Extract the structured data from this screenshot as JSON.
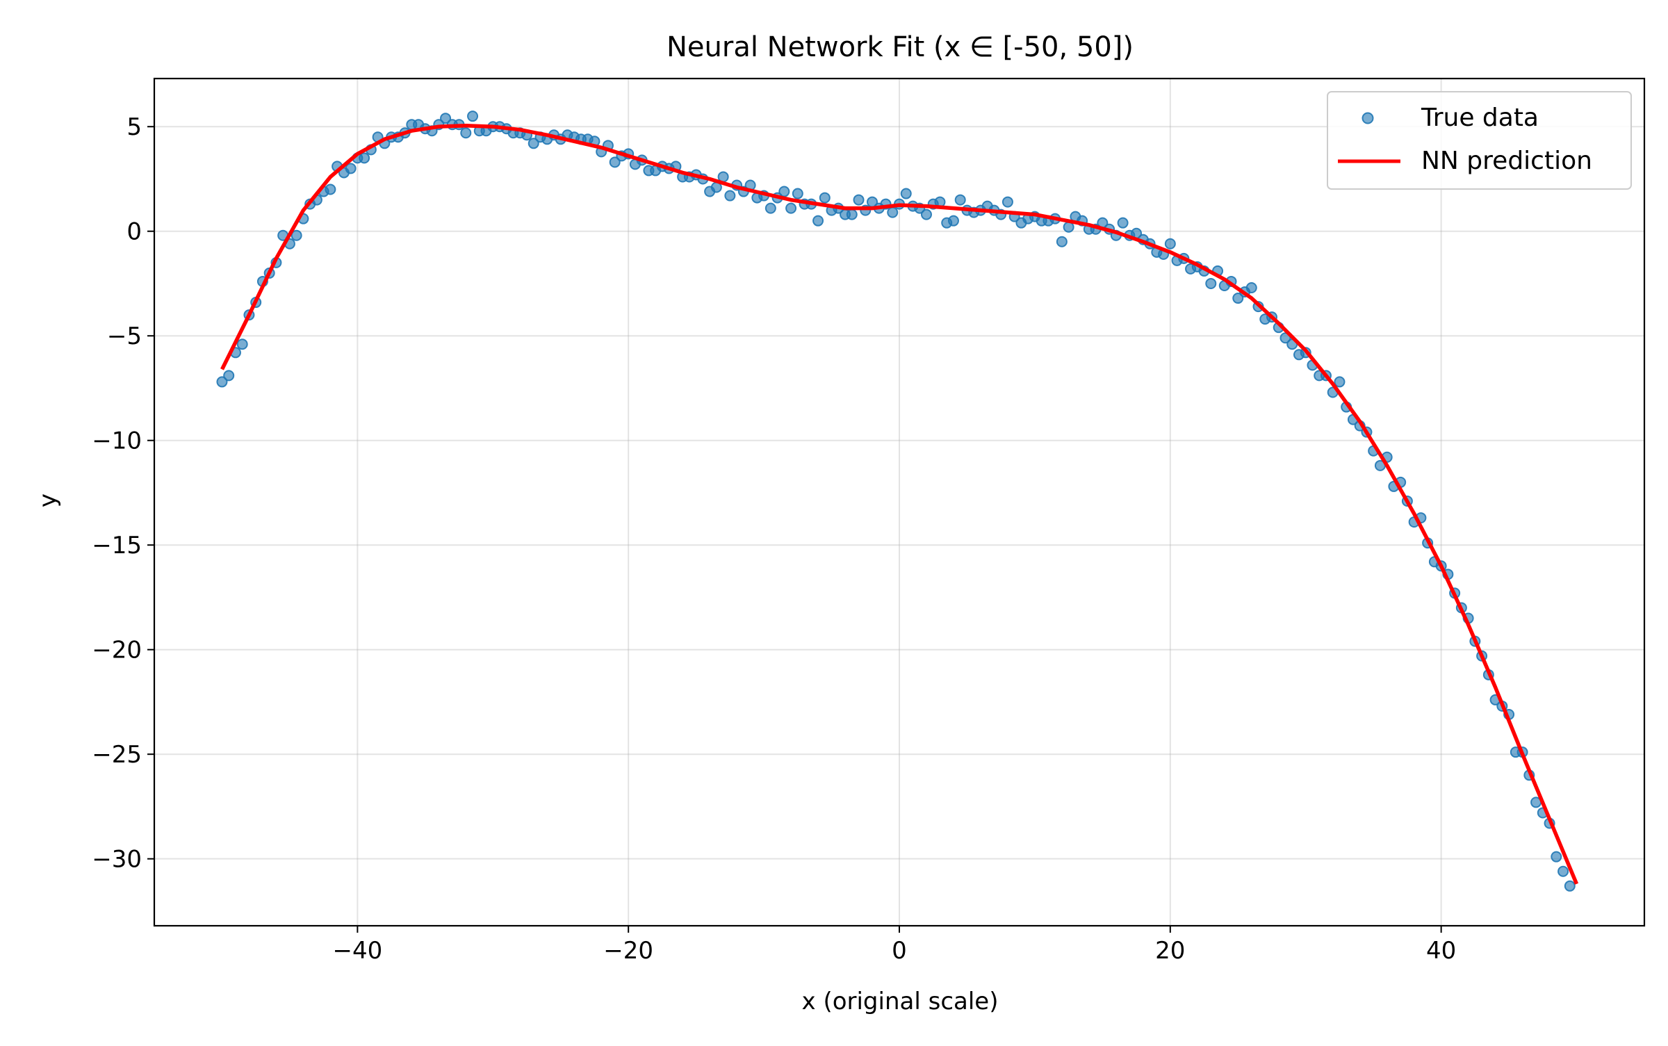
{
  "chart_data": {
    "type": "scatter",
    "title": "Neural Network Fit (x ∈ [-50, 50])",
    "xlabel": "x (original scale)",
    "ylabel": "y",
    "xlim": [
      -55,
      55
    ],
    "ylim": [
      -33.2,
      7.3
    ],
    "xticks": [
      -40,
      -20,
      0,
      20,
      40
    ],
    "xtick_labels": [
      "−40",
      "−20",
      "0",
      "20",
      "40"
    ],
    "yticks": [
      5,
      0,
      -5,
      -10,
      -15,
      -20,
      -25,
      -30
    ],
    "ytick_labels": [
      "5",
      "0",
      "−5",
      "−10",
      "−15",
      "−20",
      "−25",
      "−30"
    ],
    "grid": true,
    "legend": {
      "position": "top-right",
      "entries": [
        "True data",
        "NN prediction"
      ]
    },
    "series": [
      {
        "name": "True data",
        "kind": "scatter",
        "color": "#1f77b4",
        "points": [
          [
            -50.0,
            -7.2
          ],
          [
            -49.5,
            -6.9
          ],
          [
            -49.0,
            -5.8
          ],
          [
            -48.5,
            -5.4
          ],
          [
            -48.0,
            -4.0
          ],
          [
            -47.5,
            -3.4
          ],
          [
            -47.0,
            -2.4
          ],
          [
            -46.5,
            -2.0
          ],
          [
            -46.0,
            -1.5
          ],
          [
            -45.5,
            -0.2
          ],
          [
            -45.0,
            -0.6
          ],
          [
            -44.5,
            -0.2
          ],
          [
            -44.0,
            0.6
          ],
          [
            -43.5,
            1.3
          ],
          [
            -43.0,
            1.5
          ],
          [
            -42.5,
            1.9
          ],
          [
            -42.0,
            2.0
          ],
          [
            -41.5,
            3.1
          ],
          [
            -41.0,
            2.8
          ],
          [
            -40.5,
            3.0
          ],
          [
            -40.0,
            3.5
          ],
          [
            -39.5,
            3.5
          ],
          [
            -39.0,
            3.9
          ],
          [
            -38.5,
            4.5
          ],
          [
            -38.0,
            4.2
          ],
          [
            -37.5,
            4.5
          ],
          [
            -37.0,
            4.5
          ],
          [
            -36.5,
            4.7
          ],
          [
            -36.0,
            5.1
          ],
          [
            -35.5,
            5.1
          ],
          [
            -35.0,
            4.9
          ],
          [
            -34.5,
            4.8
          ],
          [
            -34.0,
            5.1
          ],
          [
            -33.5,
            5.4
          ],
          [
            -33.0,
            5.1
          ],
          [
            -32.5,
            5.1
          ],
          [
            -32.0,
            4.7
          ],
          [
            -31.5,
            5.5
          ],
          [
            -31.0,
            4.8
          ],
          [
            -30.5,
            4.8
          ],
          [
            -30.0,
            5.0
          ],
          [
            -29.5,
            5.0
          ],
          [
            -29.0,
            4.9
          ],
          [
            -28.5,
            4.7
          ],
          [
            -28.0,
            4.7
          ],
          [
            -27.5,
            4.6
          ],
          [
            -27.0,
            4.2
          ],
          [
            -26.5,
            4.5
          ],
          [
            -26.0,
            4.4
          ],
          [
            -25.5,
            4.6
          ],
          [
            -25.0,
            4.4
          ],
          [
            -24.5,
            4.6
          ],
          [
            -24.0,
            4.5
          ],
          [
            -23.5,
            4.4
          ],
          [
            -23.0,
            4.4
          ],
          [
            -22.5,
            4.3
          ],
          [
            -22.0,
            3.8
          ],
          [
            -21.5,
            4.1
          ],
          [
            -21.0,
            3.3
          ],
          [
            -20.5,
            3.6
          ],
          [
            -20.0,
            3.7
          ],
          [
            -19.5,
            3.2
          ],
          [
            -19.0,
            3.4
          ],
          [
            -18.5,
            2.9
          ],
          [
            -18.0,
            2.9
          ],
          [
            -17.5,
            3.1
          ],
          [
            -17.0,
            3.0
          ],
          [
            -16.5,
            3.1
          ],
          [
            -16.0,
            2.6
          ],
          [
            -15.5,
            2.6
          ],
          [
            -15.0,
            2.7
          ],
          [
            -14.5,
            2.5
          ],
          [
            -14.0,
            1.9
          ],
          [
            -13.5,
            2.1
          ],
          [
            -13.0,
            2.6
          ],
          [
            -12.5,
            1.7
          ],
          [
            -12.0,
            2.2
          ],
          [
            -11.5,
            1.9
          ],
          [
            -11.0,
            2.2
          ],
          [
            -10.5,
            1.6
          ],
          [
            -10.0,
            1.7
          ],
          [
            -9.5,
            1.1
          ],
          [
            -9.0,
            1.6
          ],
          [
            -8.5,
            1.9
          ],
          [
            -8.0,
            1.1
          ],
          [
            -7.5,
            1.8
          ],
          [
            -7.0,
            1.3
          ],
          [
            -6.5,
            1.3
          ],
          [
            -6.0,
            0.5
          ],
          [
            -5.5,
            1.6
          ],
          [
            -5.0,
            1.0
          ],
          [
            -4.5,
            1.1
          ],
          [
            -4.0,
            0.8
          ],
          [
            -3.5,
            0.8
          ],
          [
            -3.0,
            1.5
          ],
          [
            -2.5,
            1.0
          ],
          [
            -2.0,
            1.4
          ],
          [
            -1.5,
            1.1
          ],
          [
            -1.0,
            1.3
          ],
          [
            -0.5,
            0.9
          ],
          [
            0.0,
            1.3
          ],
          [
            0.5,
            1.8
          ],
          [
            1.0,
            1.2
          ],
          [
            1.5,
            1.1
          ],
          [
            2.0,
            0.8
          ],
          [
            2.5,
            1.3
          ],
          [
            3.0,
            1.4
          ],
          [
            3.5,
            0.4
          ],
          [
            4.0,
            0.5
          ],
          [
            4.5,
            1.5
          ],
          [
            5.0,
            1.0
          ],
          [
            5.5,
            0.9
          ],
          [
            6.0,
            1.0
          ],
          [
            6.5,
            1.2
          ],
          [
            7.0,
            1.0
          ],
          [
            7.5,
            0.8
          ],
          [
            8.0,
            1.4
          ],
          [
            8.5,
            0.7
          ],
          [
            9.0,
            0.4
          ],
          [
            9.5,
            0.6
          ],
          [
            10.0,
            0.7
          ],
          [
            10.5,
            0.5
          ],
          [
            11.0,
            0.5
          ],
          [
            11.5,
            0.6
          ],
          [
            12.0,
            -0.5
          ],
          [
            12.5,
            0.2
          ],
          [
            13.0,
            0.7
          ],
          [
            13.5,
            0.5
          ],
          [
            14.0,
            0.1
          ],
          [
            14.5,
            0.1
          ],
          [
            15.0,
            0.4
          ],
          [
            15.5,
            0.1
          ],
          [
            16.0,
            -0.2
          ],
          [
            16.5,
            0.4
          ],
          [
            17.0,
            -0.2
          ],
          [
            17.5,
            -0.1
          ],
          [
            18.0,
            -0.4
          ],
          [
            18.5,
            -0.6
          ],
          [
            19.0,
            -1.0
          ],
          [
            19.5,
            -1.1
          ],
          [
            20.0,
            -0.6
          ],
          [
            20.5,
            -1.4
          ],
          [
            21.0,
            -1.3
          ],
          [
            21.5,
            -1.8
          ],
          [
            22.0,
            -1.7
          ],
          [
            22.5,
            -1.9
          ],
          [
            23.0,
            -2.5
          ],
          [
            23.5,
            -1.9
          ],
          [
            24.0,
            -2.6
          ],
          [
            24.5,
            -2.4
          ],
          [
            25.0,
            -3.2
          ],
          [
            25.5,
            -2.9
          ],
          [
            26.0,
            -2.7
          ],
          [
            26.5,
            -3.6
          ],
          [
            27.0,
            -4.2
          ],
          [
            27.5,
            -4.1
          ],
          [
            28.0,
            -4.6
          ],
          [
            28.5,
            -5.1
          ],
          [
            29.0,
            -5.4
          ],
          [
            29.5,
            -5.9
          ],
          [
            30.0,
            -5.8
          ],
          [
            30.5,
            -6.4
          ],
          [
            31.0,
            -6.9
          ],
          [
            31.5,
            -6.9
          ],
          [
            32.0,
            -7.7
          ],
          [
            32.5,
            -7.2
          ],
          [
            33.0,
            -8.4
          ],
          [
            33.5,
            -9.0
          ],
          [
            34.0,
            -9.3
          ],
          [
            34.5,
            -9.6
          ],
          [
            35.0,
            -10.5
          ],
          [
            35.5,
            -11.2
          ],
          [
            36.0,
            -10.8
          ],
          [
            36.5,
            -12.2
          ],
          [
            37.0,
            -12.0
          ],
          [
            37.5,
            -12.9
          ],
          [
            38.0,
            -13.9
          ],
          [
            38.5,
            -13.7
          ],
          [
            39.0,
            -14.9
          ],
          [
            39.5,
            -15.8
          ],
          [
            40.0,
            -16.0
          ],
          [
            40.5,
            -16.4
          ],
          [
            41.0,
            -17.3
          ],
          [
            41.5,
            -18.0
          ],
          [
            42.0,
            -18.5
          ],
          [
            42.5,
            -19.6
          ],
          [
            43.0,
            -20.3
          ],
          [
            43.5,
            -21.2
          ],
          [
            44.0,
            -22.4
          ],
          [
            44.5,
            -22.7
          ],
          [
            45.0,
            -23.1
          ],
          [
            45.5,
            -24.9
          ],
          [
            46.0,
            -24.9
          ],
          [
            46.5,
            -26.0
          ],
          [
            47.0,
            -27.3
          ],
          [
            47.5,
            -27.8
          ],
          [
            48.0,
            -28.3
          ],
          [
            48.5,
            -29.9
          ],
          [
            49.0,
            -30.6
          ],
          [
            49.5,
            -31.3
          ]
        ]
      },
      {
        "name": "NN prediction",
        "kind": "line",
        "color": "#ff0000",
        "points": [
          [
            -50,
            -6.6
          ],
          [
            -48,
            -4.0
          ],
          [
            -46,
            -1.3
          ],
          [
            -44,
            1.0
          ],
          [
            -42,
            2.6
          ],
          [
            -40,
            3.7
          ],
          [
            -38,
            4.4
          ],
          [
            -36,
            4.8
          ],
          [
            -34,
            5.0
          ],
          [
            -32,
            5.05
          ],
          [
            -30,
            5.0
          ],
          [
            -28,
            4.85
          ],
          [
            -26,
            4.6
          ],
          [
            -24,
            4.3
          ],
          [
            -22,
            4.0
          ],
          [
            -20,
            3.6
          ],
          [
            -18,
            3.2
          ],
          [
            -16,
            2.8
          ],
          [
            -14,
            2.5
          ],
          [
            -12,
            2.1
          ],
          [
            -10,
            1.8
          ],
          [
            -8,
            1.5
          ],
          [
            -6,
            1.3
          ],
          [
            -4,
            1.1
          ],
          [
            -2,
            1.1
          ],
          [
            0,
            1.25
          ],
          [
            2,
            1.2
          ],
          [
            4,
            1.1
          ],
          [
            6,
            1.0
          ],
          [
            8,
            0.9
          ],
          [
            10,
            0.8
          ],
          [
            12,
            0.55
          ],
          [
            14,
            0.3
          ],
          [
            16,
            -0.05
          ],
          [
            18,
            -0.5
          ],
          [
            20,
            -1.0
          ],
          [
            22,
            -1.6
          ],
          [
            24,
            -2.3
          ],
          [
            26,
            -3.2
          ],
          [
            28,
            -4.4
          ],
          [
            30,
            -5.7
          ],
          [
            32,
            -7.3
          ],
          [
            34,
            -9.1
          ],
          [
            36,
            -11.2
          ],
          [
            38,
            -13.5
          ],
          [
            40,
            -16.0
          ],
          [
            42,
            -18.8
          ],
          [
            44,
            -21.8
          ],
          [
            46,
            -25.0
          ],
          [
            48,
            -28.1
          ],
          [
            50,
            -31.2
          ]
        ]
      }
    ]
  }
}
